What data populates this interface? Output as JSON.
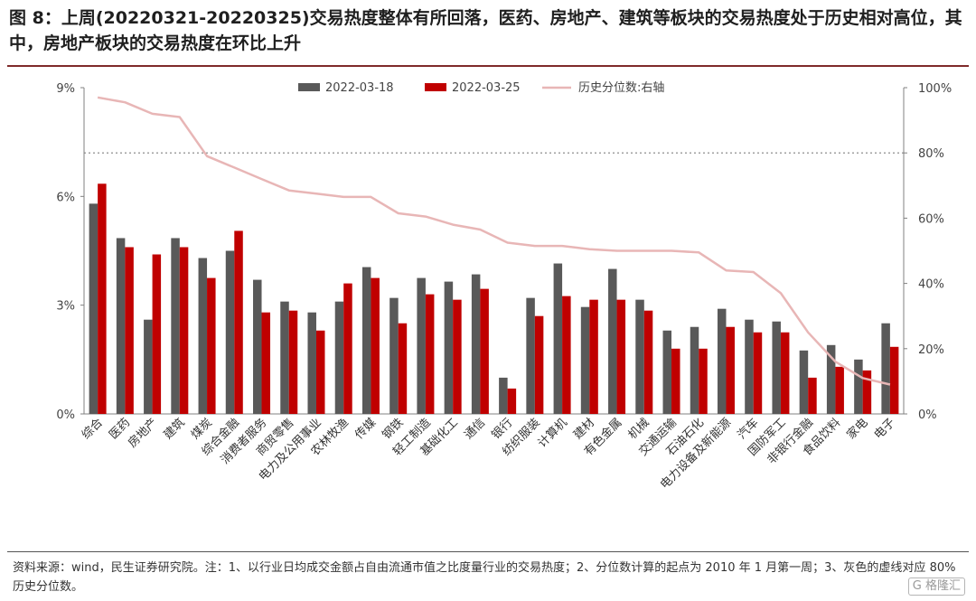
{
  "header": {
    "title": "图 8：上周(20220321-20220325)交易热度整体有所回落，医药、房地产、建筑等板块的交易热度处于历史相对高位，其中，房地产板块的交易热度在环比上升"
  },
  "chart_data": {
    "type": "bar",
    "categories": [
      "综合",
      "医药",
      "房地产",
      "建筑",
      "煤炭",
      "综合金融",
      "消费者服务",
      "商贸零售",
      "电力及公用事业",
      "农林牧渔",
      "传媒",
      "钢铁",
      "轻工制造",
      "基础化工",
      "通信",
      "银行",
      "纺织服装",
      "计算机",
      "建材",
      "有色金属",
      "机械",
      "交通运输",
      "石油石化",
      "电力设备及新能源",
      "汽车",
      "国防军工",
      "非银行金融",
      "食品饮料",
      "家电",
      "电子"
    ],
    "series": [
      {
        "name": "2022-03-18",
        "color": "#595959",
        "axis": "left",
        "type": "bar",
        "values": [
          5.8,
          4.85,
          2.6,
          4.85,
          4.3,
          4.5,
          3.7,
          3.1,
          2.8,
          3.1,
          4.05,
          3.2,
          3.75,
          3.65,
          3.85,
          1.0,
          3.2,
          4.15,
          2.95,
          4.0,
          3.15,
          2.3,
          2.4,
          2.9,
          2.6,
          2.55,
          1.75,
          1.9,
          1.5,
          2.5
        ]
      },
      {
        "name": "2022-03-25",
        "color": "#c00000",
        "axis": "left",
        "type": "bar",
        "values": [
          6.35,
          4.6,
          4.4,
          4.6,
          3.75,
          5.05,
          2.8,
          2.85,
          2.3,
          3.6,
          3.75,
          2.5,
          3.3,
          3.15,
          3.45,
          0.7,
          2.7,
          3.25,
          3.15,
          3.15,
          2.85,
          1.8,
          1.8,
          2.4,
          2.25,
          2.25,
          1.0,
          1.3,
          1.2,
          1.85
        ]
      },
      {
        "name": "历史分位数:右轴",
        "color": "#e8b6b6",
        "axis": "right",
        "type": "line",
        "values": [
          97,
          95.5,
          92,
          91,
          79,
          75.5,
          72,
          68.5,
          67.5,
          66.5,
          66.5,
          61.5,
          60.5,
          58,
          56.5,
          52.5,
          51.5,
          51.5,
          50.5,
          50,
          50,
          50,
          49.5,
          44,
          43.5,
          37,
          25,
          16,
          11,
          9
        ]
      }
    ],
    "left_axis": {
      "ylim": [
        0,
        9
      ],
      "ticks": [
        "0%",
        "3%",
        "6%",
        "9%"
      ],
      "tick_values": [
        0,
        3,
        6,
        9
      ]
    },
    "right_axis": {
      "ylim": [
        0,
        100
      ],
      "ticks": [
        "0%",
        "20%",
        "40%",
        "60%",
        "80%",
        "100%"
      ],
      "tick_values": [
        0,
        20,
        40,
        60,
        80,
        100
      ]
    },
    "reference_line": {
      "axis": "right",
      "value": 80,
      "style": "dotted",
      "color": "#808080"
    },
    "legend_position": "top-center",
    "grid": false
  },
  "footer": {
    "source": "资料来源：wind，民生证券研究院。注：1、以行业日均成交金额占自由流通市值之比度量行业的交易热度；2、分位数计算的起点为 2010 年 1 月第一周；3、灰色的虚线对应 80%历史分位数。",
    "watermark": "G 格隆汇"
  }
}
